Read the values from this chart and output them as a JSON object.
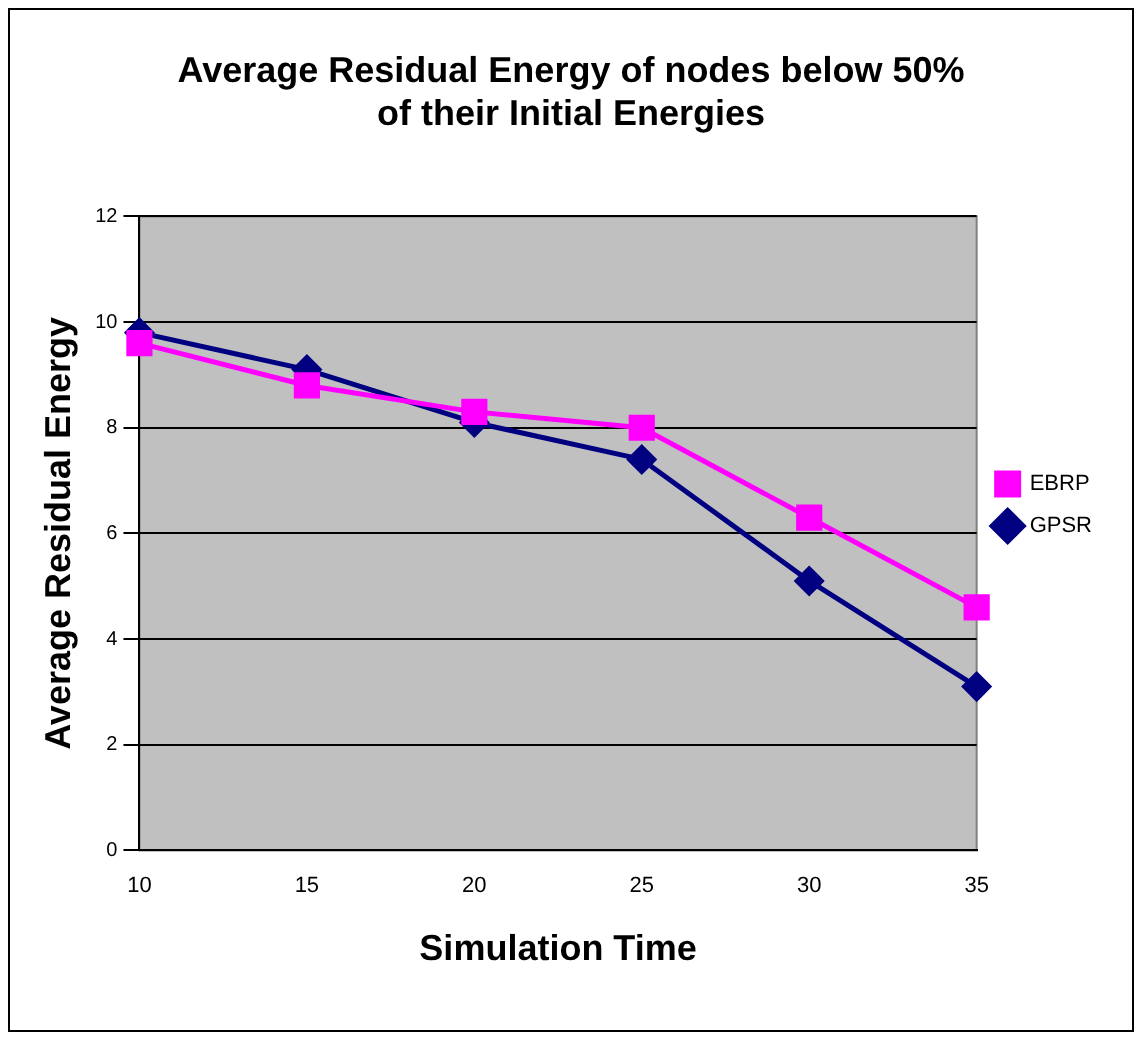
{
  "chart_data": {
    "type": "line",
    "title": "Average Residual Energy of nodes below 50% of their Initial Energies",
    "xlabel": "Simulation Time",
    "ylabel": "Average Residual Energy",
    "categories": [
      "10",
      "15",
      "20",
      "25",
      "30",
      "35"
    ],
    "series": [
      {
        "name": "GPSR",
        "color": "#000080",
        "marker": "diamond",
        "values": [
          9.8,
          9.1,
          8.1,
          7.4,
          5.1,
          3.1
        ]
      },
      {
        "name": "EBRP",
        "color": "#ff00ff",
        "marker": "square",
        "values": [
          9.6,
          8.8,
          8.3,
          8.0,
          6.3,
          4.6
        ]
      }
    ],
    "ylim": [
      0,
      12
    ],
    "yticks": [
      0,
      2,
      4,
      6,
      8,
      10,
      12
    ],
    "grid": "y",
    "legend": "right",
    "line_style": "solid"
  }
}
